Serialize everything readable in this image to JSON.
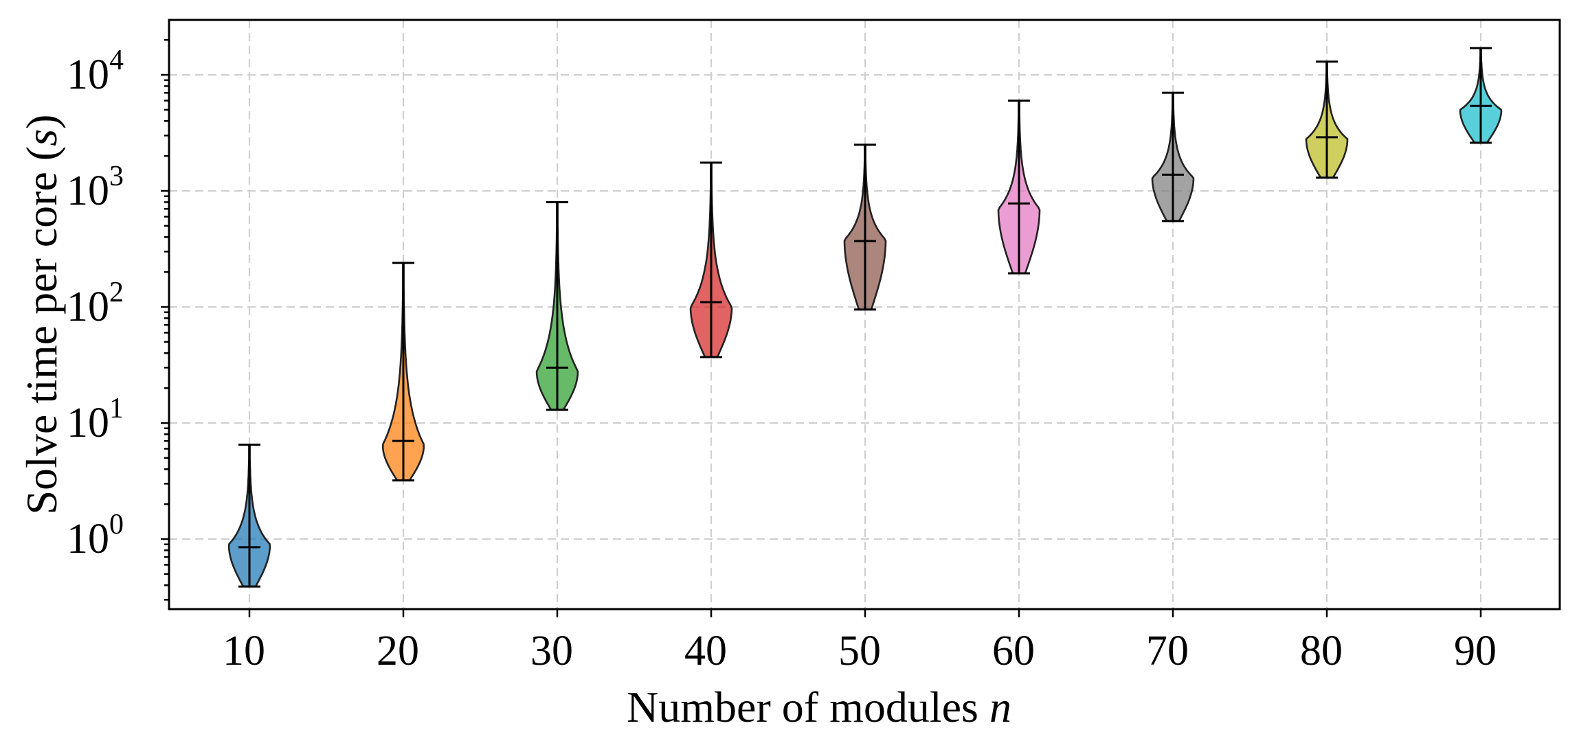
{
  "chart_data": {
    "type": "violin",
    "xlabel": "Number of modules",
    "xlabel_var": "n",
    "ylabel": "Solve time per core (",
    "ylabel_var": "s",
    "ylabel_close": ")",
    "yscale": "log",
    "ylim": [
      0.25,
      30000
    ],
    "grid": true,
    "categories": [
      "10",
      "20",
      "30",
      "40",
      "50",
      "60",
      "70",
      "80",
      "90"
    ],
    "yticks": [
      {
        "value": 1,
        "base": "10",
        "exp": "0"
      },
      {
        "value": 10,
        "base": "10",
        "exp": "1"
      },
      {
        "value": 100,
        "base": "10",
        "exp": "2"
      },
      {
        "value": 1000,
        "base": "10",
        "exp": "3"
      },
      {
        "value": 10000,
        "base": "10",
        "exp": "4"
      }
    ],
    "series": [
      {
        "category": "10",
        "min": 0.39,
        "max": 6.5,
        "median": 0.85,
        "peak": 0.9,
        "color": "#1f77b4"
      },
      {
        "category": "20",
        "min": 3.2,
        "max": 240,
        "median": 7.0,
        "peak": 6.5,
        "color": "#ff7f0e"
      },
      {
        "category": "30",
        "min": 13,
        "max": 800,
        "median": 30,
        "peak": 28,
        "color": "#2ca02c"
      },
      {
        "category": "40",
        "min": 37,
        "max": 1750,
        "median": 110,
        "peak": 100,
        "color": "#d62728"
      },
      {
        "category": "50",
        "min": 95,
        "max": 2500,
        "median": 370,
        "peak": 380,
        "color": "#8c564b"
      },
      {
        "category": "60",
        "min": 195,
        "max": 6000,
        "median": 780,
        "peak": 700,
        "color": "#e377c2"
      },
      {
        "category": "70",
        "min": 550,
        "max": 7000,
        "median": 1380,
        "peak": 1300,
        "color": "#7f7f7f"
      },
      {
        "category": "80",
        "min": 1300,
        "max": 13000,
        "median": 2900,
        "peak": 2800,
        "color": "#bcbd22"
      },
      {
        "category": "90",
        "min": 2600,
        "max": 17000,
        "median": 5400,
        "peak": 5000,
        "color": "#17becf"
      }
    ]
  }
}
